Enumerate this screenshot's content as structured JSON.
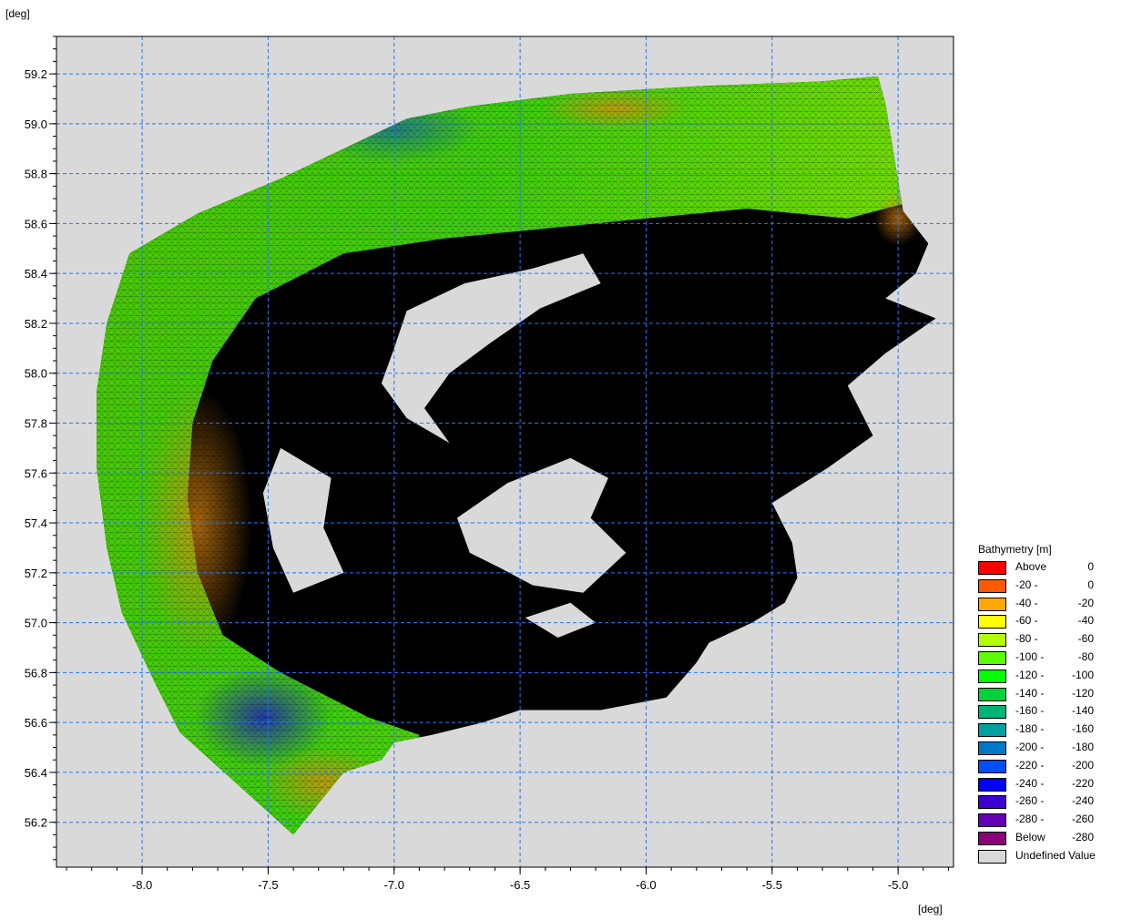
{
  "chart_data": {
    "type": "map",
    "x_unit": "[deg]",
    "y_unit": "[deg]",
    "xlim": [
      -8.34,
      -4.78
    ],
    "ylim": [
      56.02,
      59.35
    ],
    "x_ticks": [
      -8.0,
      -7.5,
      -7.0,
      -6.5,
      -6.0,
      -5.5,
      -5.0
    ],
    "x_tick_labels": [
      "-8.0",
      "-7.5",
      "-7.0",
      "-6.5",
      "-6.0",
      "-5.5",
      "-5.0"
    ],
    "y_ticks": [
      56.2,
      56.4,
      56.6,
      56.8,
      57.0,
      57.2,
      57.4,
      57.6,
      57.8,
      58.0,
      58.2,
      58.4,
      58.6,
      58.8,
      59.0,
      59.2
    ],
    "y_tick_labels": [
      "56.2",
      "56.4",
      "56.6",
      "56.8",
      "57.0",
      "57.2",
      "57.4",
      "57.6",
      "57.8",
      "58.0",
      "58.2",
      "58.4",
      "58.6",
      "58.8",
      "59.0",
      "59.2"
    ],
    "grid": true,
    "background_color": "#d9d9d9",
    "mesh_color": "#000000",
    "domain_outline": [
      [
        -7.4,
        56.15
      ],
      [
        -7.85,
        56.56
      ],
      [
        -7.95,
        56.76
      ],
      [
        -8.08,
        57.04
      ],
      [
        -8.14,
        57.3
      ],
      [
        -8.18,
        57.62
      ],
      [
        -8.18,
        57.93
      ],
      [
        -8.14,
        58.2
      ],
      [
        -8.05,
        58.48
      ],
      [
        -7.78,
        58.64
      ],
      [
        -7.45,
        58.78
      ],
      [
        -7.2,
        58.9
      ],
      [
        -6.95,
        59.02
      ],
      [
        -6.7,
        59.07
      ],
      [
        -6.3,
        59.12
      ],
      [
        -5.8,
        59.15
      ],
      [
        -5.3,
        59.17
      ],
      [
        -5.08,
        59.19
      ],
      [
        -5.05,
        59.08
      ],
      [
        -4.98,
        58.65
      ],
      [
        -4.88,
        58.52
      ],
      [
        -4.93,
        58.4
      ],
      [
        -5.05,
        58.3
      ],
      [
        -4.85,
        58.22
      ],
      [
        -5.05,
        58.08
      ],
      [
        -5.2,
        57.95
      ],
      [
        -5.1,
        57.75
      ],
      [
        -5.28,
        57.62
      ],
      [
        -5.5,
        57.48
      ],
      [
        -5.42,
        57.32
      ],
      [
        -5.4,
        57.18
      ],
      [
        -5.45,
        57.08
      ],
      [
        -5.58,
        57.0
      ],
      [
        -5.75,
        56.92
      ],
      [
        -5.8,
        56.84
      ],
      [
        -5.92,
        56.7
      ],
      [
        -6.18,
        56.65
      ],
      [
        -6.5,
        56.65
      ],
      [
        -6.65,
        56.6
      ],
      [
        -6.85,
        56.55
      ],
      [
        -7.0,
        56.52
      ],
      [
        -7.05,
        56.45
      ],
      [
        -7.2,
        56.4
      ]
    ],
    "land_areas": [
      [
        [
          -6.95,
          58.25
        ],
        [
          -6.72,
          58.36
        ],
        [
          -6.45,
          58.42
        ],
        [
          -6.25,
          58.48
        ],
        [
          -6.18,
          58.36
        ],
        [
          -6.42,
          58.26
        ],
        [
          -6.62,
          58.12
        ],
        [
          -6.78,
          58.0
        ],
        [
          -6.88,
          57.86
        ],
        [
          -6.78,
          57.72
        ],
        [
          -6.95,
          57.82
        ],
        [
          -7.05,
          57.96
        ],
        [
          -7.0,
          58.1
        ]
      ],
      [
        [
          -6.75,
          57.42
        ],
        [
          -6.55,
          57.56
        ],
        [
          -6.3,
          57.66
        ],
        [
          -6.15,
          57.58
        ],
        [
          -6.22,
          57.42
        ],
        [
          -6.08,
          57.28
        ],
        [
          -6.25,
          57.12
        ],
        [
          -6.45,
          57.15
        ],
        [
          -6.58,
          57.22
        ],
        [
          -6.7,
          57.28
        ]
      ],
      [
        [
          -7.45,
          57.7
        ],
        [
          -7.25,
          57.58
        ],
        [
          -7.28,
          57.38
        ],
        [
          -7.2,
          57.2
        ],
        [
          -7.4,
          57.12
        ],
        [
          -7.48,
          57.3
        ],
        [
          -7.52,
          57.52
        ]
      ],
      [
        [
          -6.48,
          57.02
        ],
        [
          -6.3,
          57.08
        ],
        [
          -6.2,
          57.0
        ],
        [
          -6.35,
          56.94
        ]
      ]
    ],
    "legend": {
      "title": "Bathymetry [m]",
      "entries": [
        {
          "a": "Above",
          "b": "0",
          "color": "#ff0000"
        },
        {
          "a": "-20 -",
          "b": "0",
          "color": "#ff5a00"
        },
        {
          "a": "-40 -",
          "b": "-20",
          "color": "#ffa800"
        },
        {
          "a": "-60 -",
          "b": "-40",
          "color": "#ffff00"
        },
        {
          "a": "-80 -",
          "b": "-60",
          "color": "#b4ff00"
        },
        {
          "a": "-100 -",
          "b": "-80",
          "color": "#5aff00"
        },
        {
          "a": "-120 -",
          "b": "-100",
          "color": "#00ff00"
        },
        {
          "a": "-140 -",
          "b": "-120",
          "color": "#00d23c"
        },
        {
          "a": "-160 -",
          "b": "-140",
          "color": "#00b478"
        },
        {
          "a": "-180 -",
          "b": "-160",
          "color": "#00a0a0"
        },
        {
          "a": "-200 -",
          "b": "-180",
          "color": "#0078c8"
        },
        {
          "a": "-220 -",
          "b": "-200",
          "color": "#0050ff"
        },
        {
          "a": "-240 -",
          "b": "-220",
          "color": "#0000ff"
        },
        {
          "a": "-260 -",
          "b": "-240",
          "color": "#3c00d2"
        },
        {
          "a": "-280 -",
          "b": "-260",
          "color": "#6400b4"
        },
        {
          "a": "Below",
          "b": "-280",
          "color": "#8c0078"
        },
        {
          "a": "Undefined Value",
          "b": "",
          "color": "#d9d9d9"
        }
      ]
    }
  }
}
